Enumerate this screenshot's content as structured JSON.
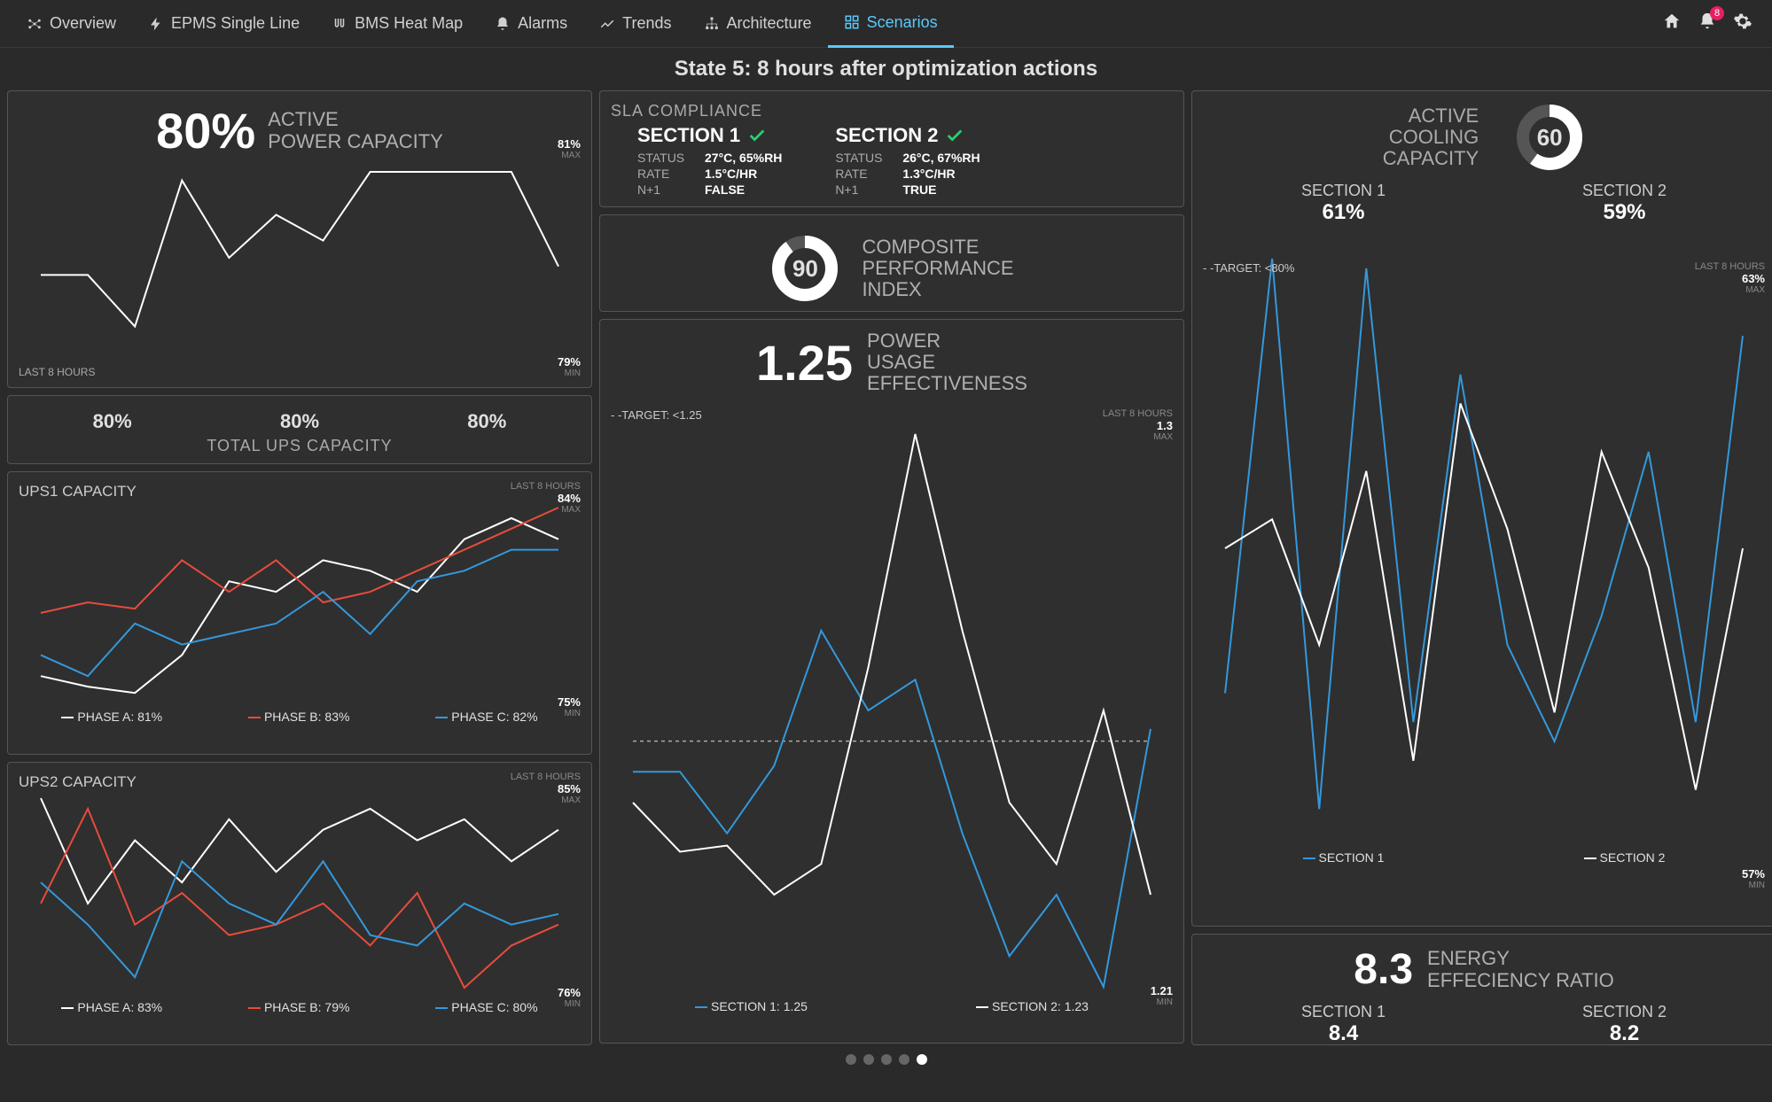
{
  "colors": {
    "bg": "#2a2a2a",
    "card": "#2f2f2f",
    "border": "#555555",
    "text": "#e0e0e0",
    "muted": "#aaaaaa",
    "accent": "#5ac8fa",
    "white": "#ffffff",
    "red": "#e74c3c",
    "blue": "#3498db",
    "badge": "#e91e63",
    "green_check": "#2ecc71"
  },
  "nav": {
    "items": [
      {
        "label": "Overview",
        "icon": "hub-icon"
      },
      {
        "label": "EPMS Single Line",
        "icon": "bolt-icon"
      },
      {
        "label": "BMS Heat Map",
        "icon": "heat-icon"
      },
      {
        "label": "Alarms",
        "icon": "bell-icon"
      },
      {
        "label": "Trends",
        "icon": "trend-icon"
      },
      {
        "label": "Architecture",
        "icon": "sitemap-icon"
      },
      {
        "label": "Scenarios",
        "icon": "grid-icon"
      }
    ],
    "active_index": 6,
    "badge": "8"
  },
  "subtitle": "State 5: 8 hours after optimization actions",
  "power": {
    "value": "80%",
    "label_l1": "ACTIVE",
    "label_l2": "POWER CAPACITY",
    "max": {
      "v": "81%",
      "u": "MAX"
    },
    "min": {
      "v": "79%",
      "u": "MIN"
    },
    "last": "LAST 8 HOURS",
    "chart": {
      "type": "line",
      "ylim": [
        79,
        81
      ],
      "stroke": "#ffffff",
      "stroke_width": 2,
      "points": [
        79.8,
        79.8,
        79.2,
        80.9,
        80.0,
        80.5,
        80.2,
        81.0,
        81.0,
        81.0,
        81.0,
        79.9
      ]
    }
  },
  "ups_total": {
    "a": "80%",
    "b": "80%",
    "c": "80%",
    "label": "TOTAL UPS CAPACITY"
  },
  "ups1": {
    "title": "UPS1 CAPACITY",
    "last": "LAST 8 HOURS",
    "max": {
      "v": "84%",
      "u": "MAX"
    },
    "min": {
      "v": "75%",
      "u": "MIN"
    },
    "legend": {
      "a": "PHASE A: 81%",
      "b": "PHASE B: 83%",
      "c": "PHASE C: 82%"
    },
    "chart": {
      "type": "line",
      "ylim": [
        75,
        84
      ],
      "series": {
        "a": {
          "color": "#ffffff",
          "points": [
            76,
            75.5,
            75.2,
            77,
            80.5,
            80,
            81.5,
            81,
            80,
            82.5,
            83.5,
            82.5
          ]
        },
        "b": {
          "color": "#e74c3c",
          "points": [
            79,
            79.5,
            79.2,
            81.5,
            80,
            81.5,
            79.5,
            80,
            81,
            82,
            83,
            84
          ]
        },
        "c": {
          "color": "#3498db",
          "points": [
            77,
            76,
            78.5,
            77.5,
            78,
            78.5,
            80,
            78,
            80.5,
            81,
            82,
            82
          ]
        }
      }
    }
  },
  "ups2": {
    "title": "UPS2 CAPACITY",
    "last": "LAST 8 HOURS",
    "max": {
      "v": "85%",
      "u": "MAX"
    },
    "min": {
      "v": "76%",
      "u": "MIN"
    },
    "legend": {
      "a": "PHASE A: 83%",
      "b": "PHASE B: 79%",
      "c": "PHASE C: 80%"
    },
    "chart": {
      "type": "line",
      "ylim": [
        76,
        85
      ],
      "series": {
        "a": {
          "color": "#ffffff",
          "points": [
            85,
            80,
            83,
            81,
            84,
            81.5,
            83.5,
            84.5,
            83,
            84,
            82,
            83.5
          ]
        },
        "b": {
          "color": "#e74c3c",
          "points": [
            80,
            84.5,
            79,
            80.5,
            78.5,
            79,
            80,
            78,
            80.5,
            76,
            78,
            79
          ]
        },
        "c": {
          "color": "#3498db",
          "points": [
            81,
            79,
            76.5,
            82,
            80,
            79,
            82,
            78.5,
            78,
            80,
            79,
            79.5
          ]
        }
      }
    }
  },
  "sla": {
    "title": "SLA COMPLIANCE",
    "sec1": {
      "title": "SECTION 1",
      "ok": true,
      "status": "27°C, 65%RH",
      "rate": "1.5°C/HR",
      "n1": "FALSE"
    },
    "sec2": {
      "title": "SECTION 2",
      "ok": true,
      "status": "26°C, 67%RH",
      "rate": "1.3°C/HR",
      "n1": "TRUE"
    },
    "labels": {
      "status": "STATUS",
      "rate": "RATE",
      "n1": "N+1"
    }
  },
  "cpi": {
    "value": "90",
    "label_l1": "COMPOSITE",
    "label_l2": "PERFORMANCE",
    "label_l3": "INDEX",
    "ring": {
      "percent": 90,
      "fill": "#ffffff",
      "track": "#555555",
      "thickness": 12
    }
  },
  "pue": {
    "value": "1.25",
    "label_l1": "POWER",
    "label_l2": "USAGE",
    "label_l3": "EFFECTIVENESS",
    "target": "- -TARGET: <1.25",
    "last": "LAST 8 HOURS",
    "max": {
      "v": "1.3",
      "u": "MAX"
    },
    "min": {
      "v": "1.21",
      "u": "MIN"
    },
    "legend": {
      "s1": "SECTION 1: 1.25",
      "s2": "SECTION 2: 1.23"
    },
    "chart": {
      "type": "line",
      "ylim": [
        1.21,
        1.3
      ],
      "target_y": 1.25,
      "target_dash": "3,3",
      "series": {
        "s1": {
          "color": "#3498db",
          "points": [
            1.245,
            1.245,
            1.235,
            1.246,
            1.268,
            1.255,
            1.26,
            1.235,
            1.215,
            1.225,
            1.21,
            1.252
          ]
        },
        "s2": {
          "color": "#ffffff",
          "points": [
            1.24,
            1.232,
            1.233,
            1.225,
            1.23,
            1.262,
            1.3,
            1.268,
            1.24,
            1.23,
            1.255,
            1.225
          ]
        }
      }
    }
  },
  "cooling": {
    "value": "60",
    "label_l1": "ACTIVE",
    "label_l2": "COOLING",
    "label_l3": "CAPACITY",
    "ring": {
      "percent": 60,
      "fill": "#ffffff",
      "track": "#555555",
      "thickness": 12
    },
    "sec1": {
      "t": "SECTION 1",
      "v": "61%"
    },
    "sec2": {
      "t": "SECTION 2",
      "v": "59%"
    },
    "target": "- -TARGET: <80%",
    "last": "LAST 8 HOURS",
    "max": {
      "v": "63%",
      "u": "MAX"
    },
    "min": {
      "v": "57%",
      "u": "MIN"
    },
    "legend": {
      "s1": "SECTION 1",
      "s2": "SECTION 2"
    },
    "chart": {
      "type": "line",
      "ylim": [
        57,
        63
      ],
      "series": {
        "s1": {
          "color": "#3498db",
          "points": [
            58.5,
            63.0,
            57.3,
            62.9,
            58.2,
            61.8,
            59.0,
            58.0,
            59.3,
            61.0,
            58.2,
            62.2
          ]
        },
        "s2": {
          "color": "#ffffff",
          "points": [
            60.0,
            60.3,
            59.0,
            60.8,
            57.8,
            61.5,
            60.2,
            58.3,
            61.0,
            59.8,
            57.5,
            60.0
          ]
        }
      }
    }
  },
  "eer": {
    "value": "8.3",
    "label_l1": "ENERGY",
    "label_l2": "EFFECIENCY RATIO",
    "sec1": {
      "t": "SECTION 1",
      "v": "8.4"
    },
    "sec2": {
      "t": "SECTION 2",
      "v": "8.2"
    }
  },
  "pager": {
    "count": 5,
    "active": 4
  }
}
